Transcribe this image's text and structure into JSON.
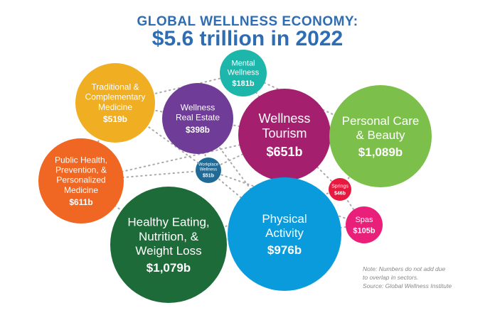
{
  "title": {
    "line1": "GLOBAL WELLNESS ECONOMY:",
    "line2": "$5.6 trillion in 2022"
  },
  "note": [
    "Note: Numbers do not add due",
    "to overlap in sectors.",
    "Source: Global Wellness Institute"
  ],
  "chart_data": {
    "type": "bubble",
    "unit": "billion USD",
    "total": "$5.6 trillion",
    "year": 2022,
    "sectors": [
      {
        "name": "Traditional & Complementary Medicine",
        "lines": [
          "Traditional &",
          "Complementary",
          "Medicine"
        ],
        "label": "$519b",
        "value": 519,
        "color": "#F0AE22"
      },
      {
        "name": "Mental Wellness",
        "lines": [
          "Mental",
          "Wellness"
        ],
        "label": "$181b",
        "value": 181,
        "color": "#1DB6AA"
      },
      {
        "name": "Wellness Real Estate",
        "lines": [
          "Wellness",
          "Real Estate"
        ],
        "label": "$398b",
        "value": 398,
        "color": "#6F3D97"
      },
      {
        "name": "Wellness Tourism",
        "lines": [
          "Wellness",
          "Tourism"
        ],
        "label": "$651b",
        "value": 651,
        "color": "#A4206F"
      },
      {
        "name": "Personal Care & Beauty",
        "lines": [
          "Personal Care",
          "& Beauty"
        ],
        "label": "$1,089b",
        "value": 1089,
        "color": "#7CC04B"
      },
      {
        "name": "Public Health, Prevention, & Personalized Medicine",
        "lines": [
          "Public Health,",
          "Prevention, &",
          "Personalized",
          "Medicine"
        ],
        "label": "$611b",
        "value": 611,
        "color": "#F06623"
      },
      {
        "name": "Workplace Wellness",
        "lines": [
          "Workplace",
          "Wellness"
        ],
        "label": "$51b",
        "value": 51,
        "color": "#1F6A96"
      },
      {
        "name": "Springs",
        "lines": [
          "Springs"
        ],
        "label": "$46b",
        "value": 46,
        "color": "#E8193F"
      },
      {
        "name": "Spas",
        "lines": [
          "Spas"
        ],
        "label": "$105b",
        "value": 105,
        "color": "#EA1F79"
      },
      {
        "name": "Healthy Eating, Nutrition, & Weight Loss",
        "lines": [
          "Healthy Eating,",
          "Nutrition, &",
          "Weight Loss"
        ],
        "label": "$1,079b",
        "value": 1079,
        "color": "#1D6B38"
      },
      {
        "name": "Physical Activity",
        "lines": [
          "Physical",
          "Activity"
        ],
        "label": "$976b",
        "value": 976,
        "color": "#0A9BDC"
      }
    ]
  }
}
